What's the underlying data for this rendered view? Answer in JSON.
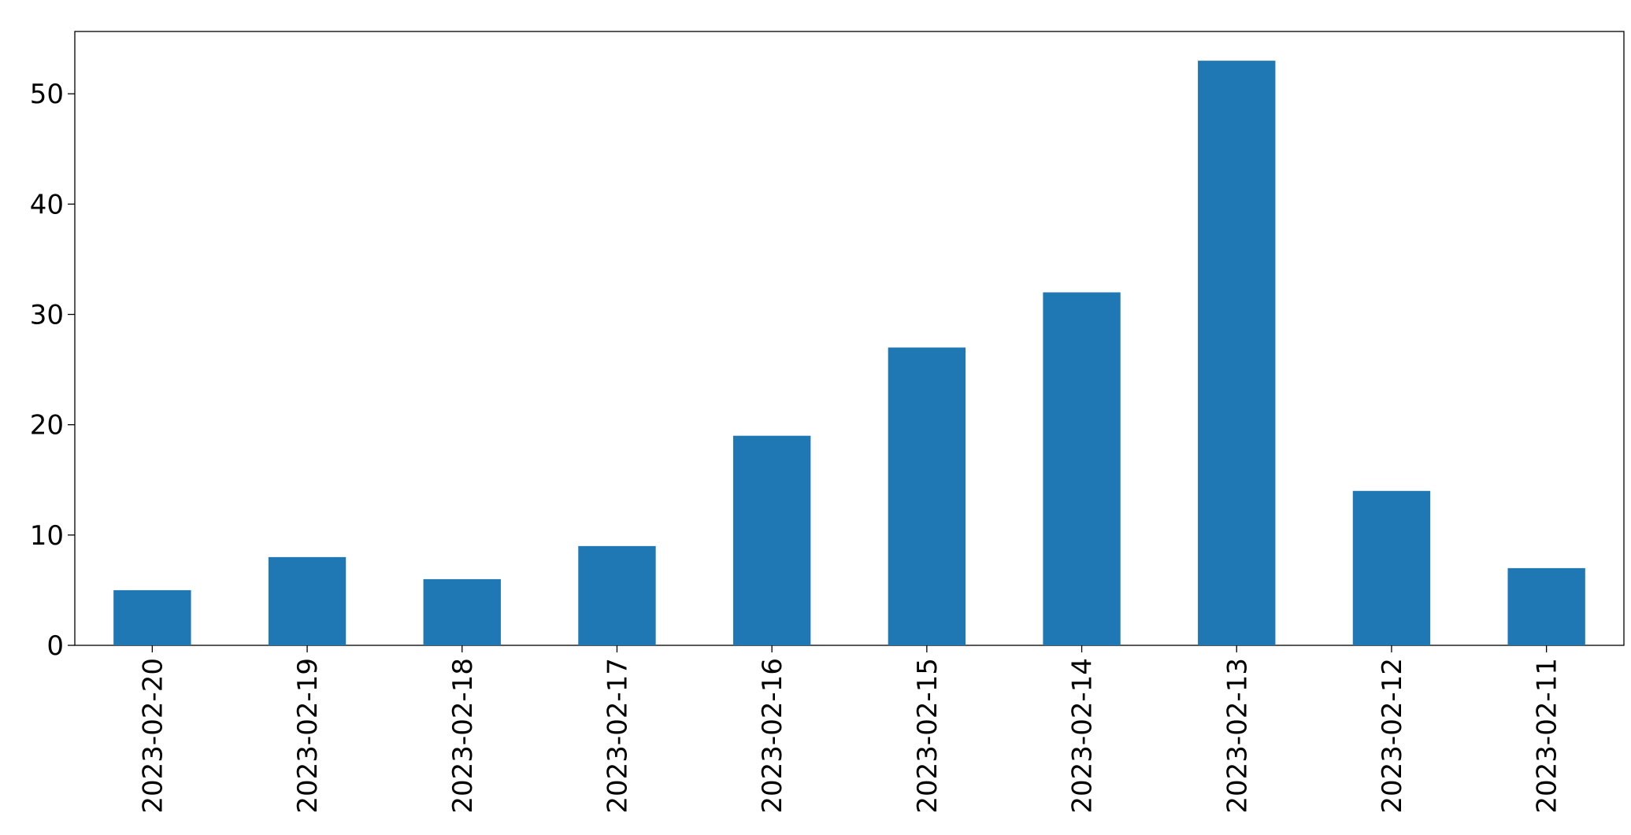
{
  "chart_data": {
    "type": "bar",
    "categories": [
      "2023-02-20",
      "2023-02-19",
      "2023-02-18",
      "2023-02-17",
      "2023-02-16",
      "2023-02-15",
      "2023-02-14",
      "2023-02-13",
      "2023-02-12",
      "2023-02-11"
    ],
    "values": [
      5,
      8,
      6,
      9,
      19,
      27,
      32,
      53,
      14,
      7
    ],
    "color": "#1f77b4",
    "ylim": [
      0,
      55.65
    ],
    "yticks": [
      0,
      10,
      20,
      30,
      40,
      50
    ],
    "grid": false
  }
}
